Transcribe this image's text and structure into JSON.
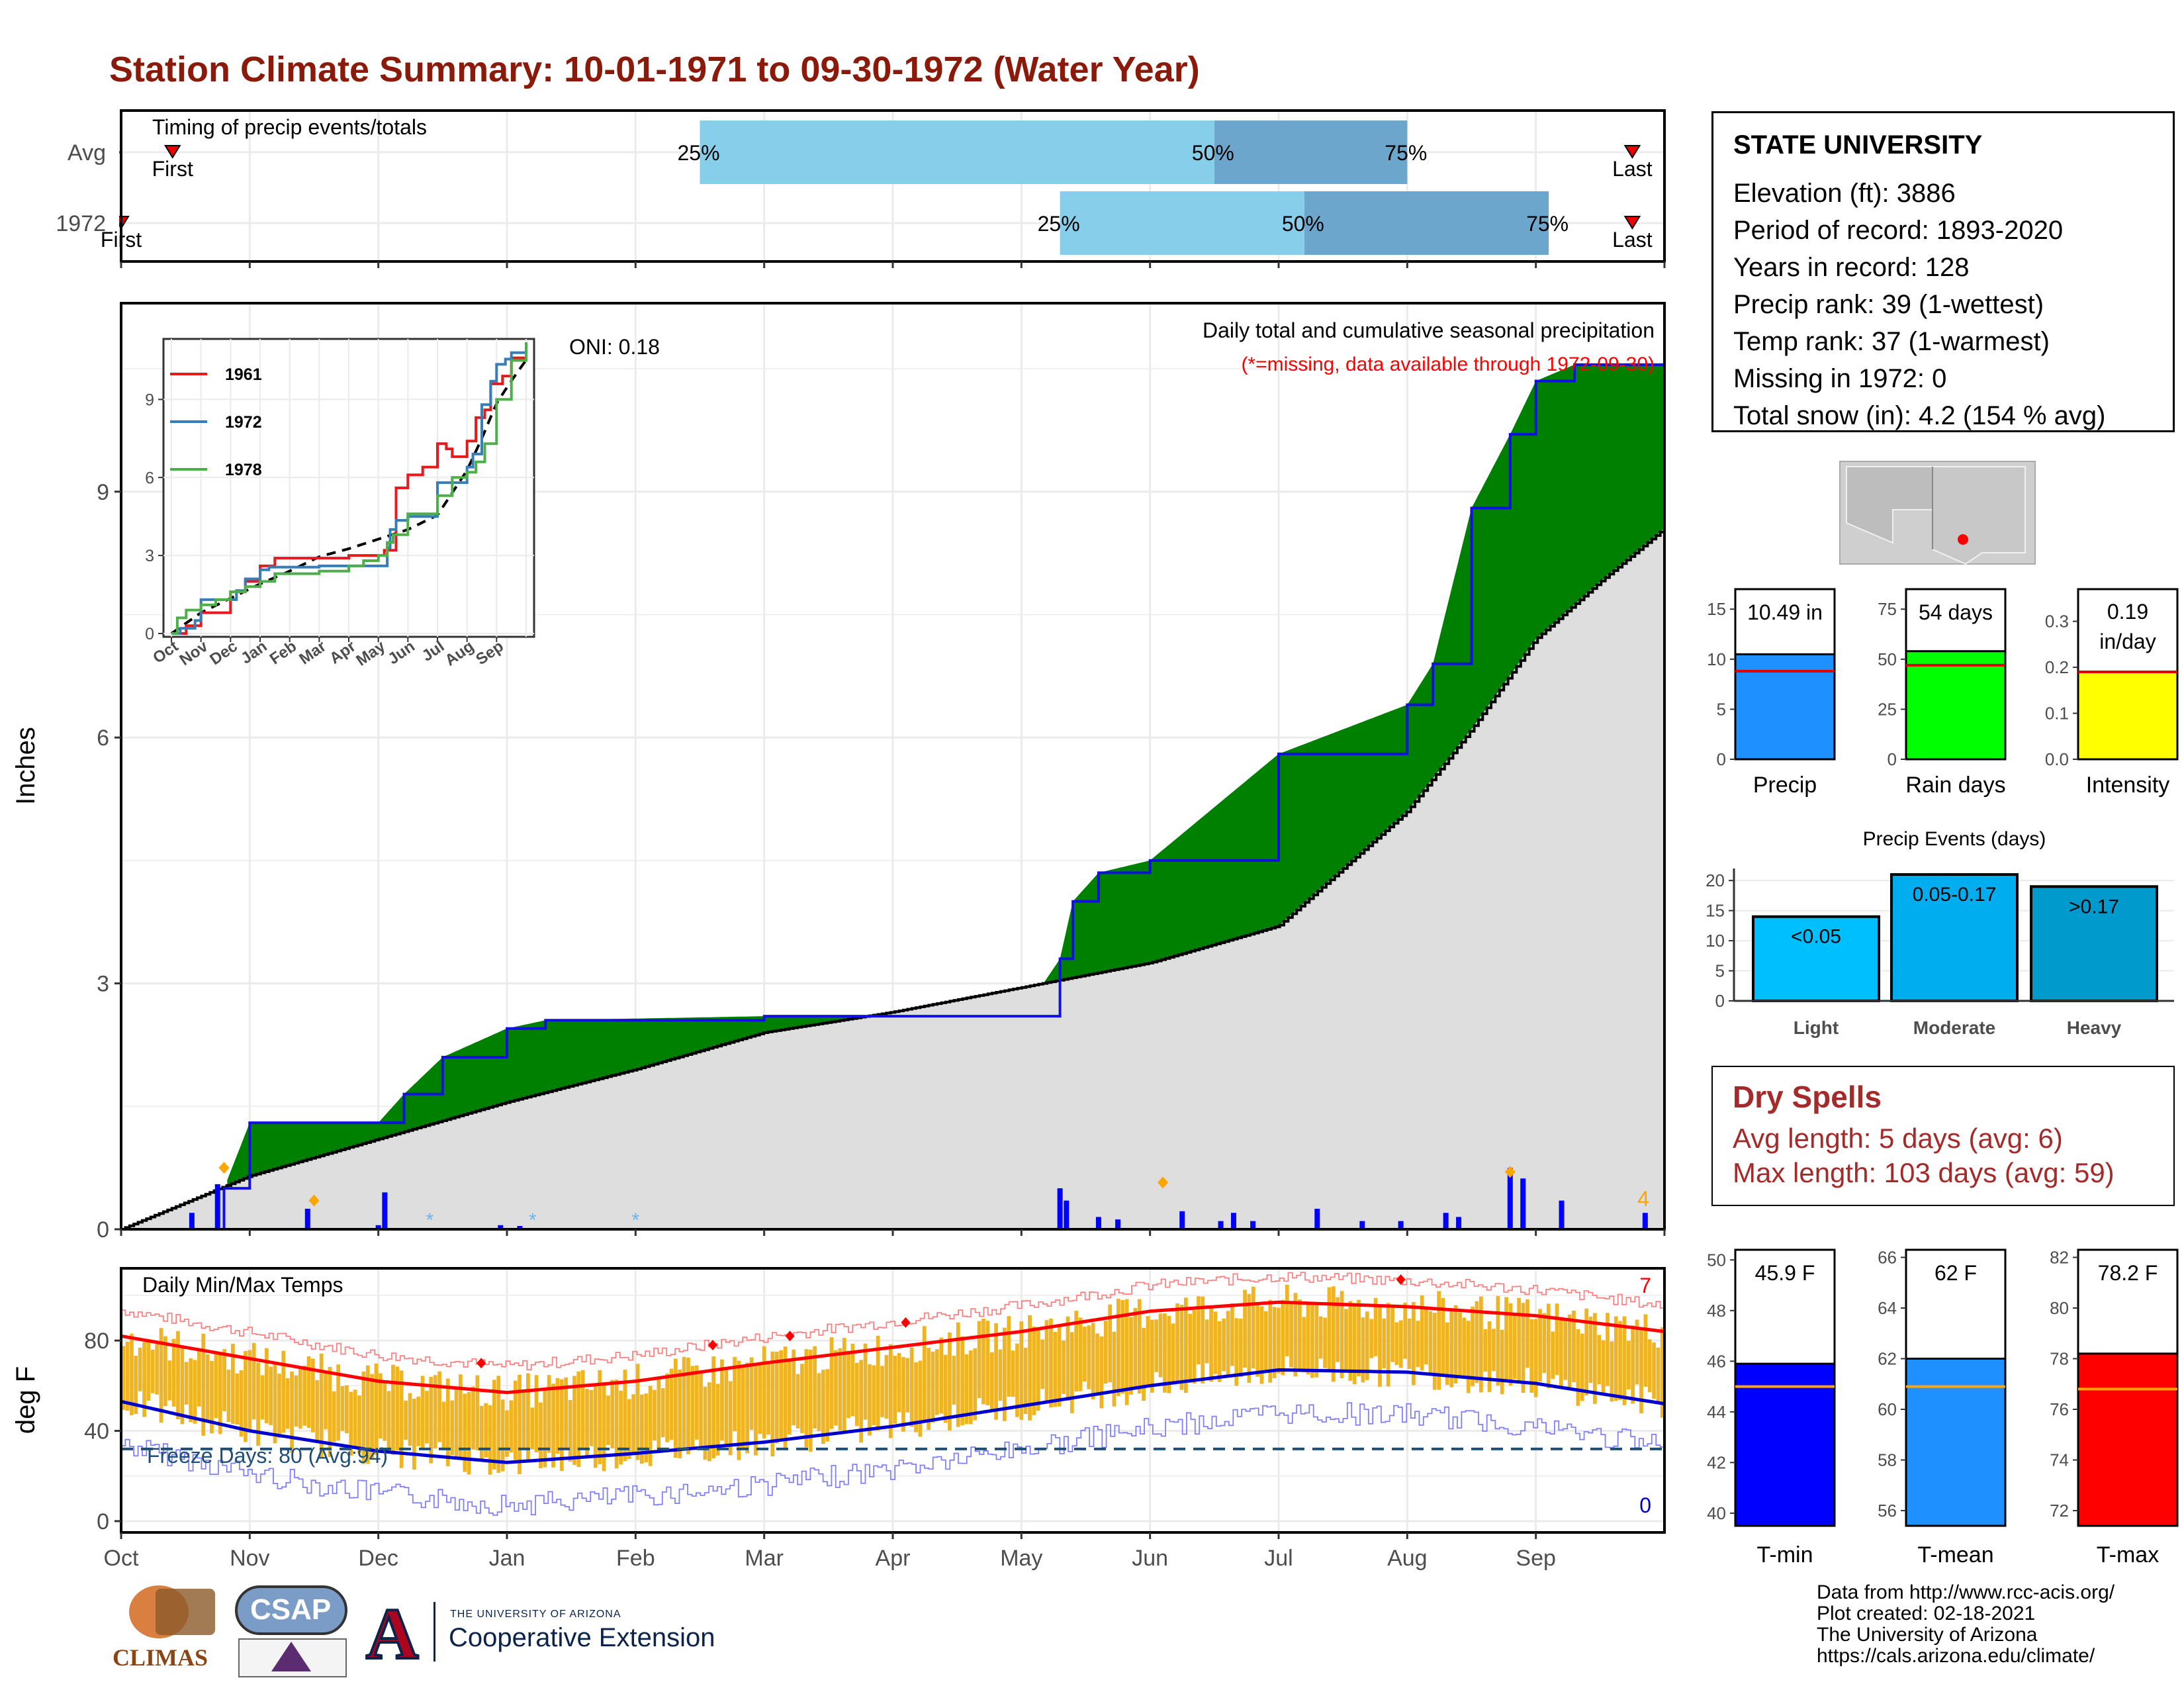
{
  "title": "Station Climate Summary: 10-01-1971 to 09-30-1972 (Water Year)",
  "colors": {
    "title": "#8B1A0A",
    "iqr_light": "#87CEEB",
    "iqr_dark": "#6CA6CD",
    "surplus": "#008000",
    "deficit": "#7F5200",
    "avg_fill": "#DEDEDE",
    "daily_bar": "#0000FF",
    "temp_bar": "#EEB422",
    "tmax_line": "#FF0000",
    "tmin_line": "#0000CD",
    "dry_text": "#A52A2A"
  },
  "timing_panel": {
    "label": "Timing of precip events/totals",
    "rows": [
      {
        "name": "Avg",
        "first_label": "First",
        "last_label": "Last",
        "first_month": 0.4,
        "last_month": 11.75,
        "q25": 4.5,
        "q50": 8.5,
        "q75": 10.0,
        "q25_label": "25%",
        "q50_label": "50%",
        "q75_label": "75%"
      },
      {
        "name": "1972",
        "first_label": "First",
        "last_label": "Last",
        "first_month": 0.0,
        "last_month": 11.75,
        "q25": 7.3,
        "q50": 9.2,
        "q75": 11.1,
        "q25_label": "25%",
        "q50_label": "50%",
        "q75_label": "75%"
      }
    ]
  },
  "precip_panel": {
    "ylabel": "Inches",
    "yticks": [
      "0",
      "3",
      "6",
      "9"
    ],
    "header_line1": "Daily total and cumulative seasonal precipitation",
    "header_line2": "(*=missing, data available through 1972-09-30)",
    "oni": "ONI: 0.18",
    "count_label": "4",
    "xticks": [
      "Oct",
      "Nov",
      "Dec",
      "Jan",
      "Feb",
      "Mar",
      "Apr",
      "May",
      "Jun",
      "Jul",
      "Aug",
      "Sep"
    ]
  },
  "inset": {
    "yticks": [
      "0",
      "3",
      "6",
      "9"
    ],
    "xticks": [
      "Oct",
      "Nov",
      "Dec",
      "Jan",
      "Feb",
      "Mar",
      "Apr",
      "May",
      "Jun",
      "Jul",
      "Aug",
      "Sep"
    ],
    "legend": [
      {
        "name": "1961",
        "color": "#E41A1C"
      },
      {
        "name": "1972",
        "color": "#377EB8"
      },
      {
        "name": "1978",
        "color": "#4DAF4A"
      }
    ]
  },
  "station": {
    "name": "STATE UNIVERSITY",
    "lines": [
      "Elevation (ft): 3886",
      "Period of record: 1893-2020",
      "Years in record: 128",
      "Precip rank: 39 (1-wettest)",
      "Temp rank: 37 (1-warmest)",
      "Missing in 1972: 0",
      "Total snow (in): 4.2 (154 % avg)"
    ]
  },
  "summary_bars": [
    {
      "label": "Precip",
      "value_label": "10.49 in",
      "value": 10.49,
      "avg": 8.8,
      "ymax": 17,
      "ticks": [
        "0",
        "5",
        "10",
        "15"
      ],
      "tick_values": [
        0,
        5,
        10,
        15
      ],
      "color": "#1E90FF"
    },
    {
      "label": "Rain days",
      "value_label": "54 days",
      "value": 54,
      "avg": 47,
      "ymax": 85,
      "ticks": [
        "0",
        "25",
        "50",
        "75"
      ],
      "tick_values": [
        0,
        25,
        50,
        75
      ],
      "color": "#00FF00"
    },
    {
      "label": "Intensity",
      "value_label": "0.19 in/day",
      "value": 0.19,
      "avg": 0.19,
      "ymax": 0.37,
      "ticks": [
        "0.0",
        "0.1",
        "0.2",
        "0.3"
      ],
      "tick_values": [
        0,
        0.1,
        0.2,
        0.3
      ],
      "color": "#FFFF00"
    }
  ],
  "events": {
    "title": "Precip Events (days)",
    "yticks": [
      "0",
      "5",
      "10",
      "15",
      "20"
    ],
    "bars": [
      {
        "category": "Light",
        "range": "<0.05",
        "value": 14,
        "color": "#00BFFF"
      },
      {
        "category": "Moderate",
        "range": "0.05-0.17",
        "value": 21,
        "color": "#00AEEF"
      },
      {
        "category": "Heavy",
        "range": ">0.17",
        "value": 19,
        "color": "#009ACD"
      }
    ]
  },
  "dry_spells": {
    "title": "Dry Spells",
    "avg_line": "Avg length: 5 days (avg: 6)",
    "max_line": "Max length: 103 days (avg: 59)"
  },
  "temp_panel": {
    "ylabel": "deg F",
    "label": "Daily Min/Max Temps",
    "yticks": [
      "0",
      "40",
      "80"
    ],
    "freeze": "Freeze Days: 80 (Avg:94)",
    "max_count": "7",
    "min_count": "0",
    "xticks": [
      "Oct",
      "Nov",
      "Dec",
      "Jan",
      "Feb",
      "Mar",
      "Apr",
      "May",
      "Jun",
      "Jul",
      "Aug",
      "Sep"
    ]
  },
  "temp_bars": [
    {
      "label": "T-min",
      "value_label": "45.9 F",
      "value": 45.9,
      "avg": 45.0,
      "ymin": 39.5,
      "ymax": 50.4,
      "ticks": [
        "40",
        "42",
        "44",
        "46",
        "48",
        "50"
      ],
      "tick_values": [
        40,
        42,
        44,
        46,
        48,
        50
      ],
      "color": "#0000FF"
    },
    {
      "label": "T-mean",
      "value_label": "62 F",
      "value": 62.0,
      "avg": 60.9,
      "ymin": 55.4,
      "ymax": 66.3,
      "ticks": [
        "56",
        "58",
        "60",
        "62",
        "64",
        "66"
      ],
      "tick_values": [
        56,
        58,
        60,
        62,
        64,
        66
      ],
      "color": "#1E90FF"
    },
    {
      "label": "T-max",
      "value_label": "78.2 F",
      "value": 78.2,
      "avg": 76.8,
      "ymin": 71.4,
      "ymax": 82.3,
      "ticks": [
        "72",
        "74",
        "76",
        "78",
        "80",
        "82"
      ],
      "tick_values": [
        72,
        74,
        76,
        78,
        80,
        82
      ],
      "color": "#FF0000"
    }
  ],
  "credits": [
    "Data from http://www.rcc-acis.org/",
    "Plot created: 02-18-2021",
    "The University of Arizona",
    "https://cals.arizona.edu/climate/"
  ],
  "logos": {
    "climas": "CLIMAS",
    "csap": "CSAP",
    "ua_small": "THE UNIVERSITY OF ARIZONA",
    "ua_big": "Cooperative Extension",
    "ua_letter": "A"
  },
  "chart_data": [
    {
      "type": "area",
      "title": "Daily total and cumulative seasonal precipitation",
      "ylabel": "Inches",
      "ylim": [
        0,
        11.3
      ],
      "x_unit": "month index from Oct 1",
      "series": [
        {
          "name": "1972",
          "x": [
            0,
            0.8,
            1.0,
            2.0,
            2.2,
            2.5,
            3.0,
            3.3,
            5.0,
            7.0,
            7.3,
            7.4,
            7.6,
            8.0,
            9.0,
            10.0,
            10.2,
            10.5,
            10.8,
            11.0,
            11.3,
            11.5,
            12.0
          ],
          "y": [
            0,
            0.5,
            1.3,
            1.3,
            1.65,
            2.1,
            2.45,
            2.55,
            2.6,
            2.6,
            3.3,
            4.0,
            4.35,
            4.5,
            5.8,
            6.4,
            6.9,
            8.8,
            9.7,
            10.35,
            10.55,
            10.55,
            10.55
          ]
        },
        {
          "name": "Avg",
          "x": [
            0,
            1,
            2,
            3,
            4,
            5,
            6,
            7,
            8,
            9,
            10,
            10.5,
            11,
            11.5,
            12
          ],
          "y": [
            0,
            0.65,
            1.1,
            1.55,
            1.95,
            2.4,
            2.65,
            2.95,
            3.25,
            3.7,
            5.1,
            6.1,
            7.2,
            7.9,
            8.55
          ]
        }
      ],
      "daily_values": [
        {
          "x": 0.55,
          "y": 0.2
        },
        {
          "x": 0.75,
          "y": 0.55
        },
        {
          "x": 1.45,
          "y": 0.25
        },
        {
          "x": 2.0,
          "y": 0.05
        },
        {
          "x": 2.05,
          "y": 0.45
        },
        {
          "x": 2.95,
          "y": 0.05
        },
        {
          "x": 3.1,
          "y": 0.04
        },
        {
          "x": 7.3,
          "y": 0.5
        },
        {
          "x": 7.35,
          "y": 0.35
        },
        {
          "x": 7.6,
          "y": 0.15
        },
        {
          "x": 7.75,
          "y": 0.12
        },
        {
          "x": 8.25,
          "y": 0.22
        },
        {
          "x": 8.55,
          "y": 0.1
        },
        {
          "x": 8.65,
          "y": 0.2
        },
        {
          "x": 8.8,
          "y": 0.1
        },
        {
          "x": 9.3,
          "y": 0.25
        },
        {
          "x": 9.65,
          "y": 0.1
        },
        {
          "x": 9.95,
          "y": 0.1
        },
        {
          "x": 10.3,
          "y": 0.2
        },
        {
          "x": 10.4,
          "y": 0.15
        },
        {
          "x": 10.8,
          "y": 0.75
        },
        {
          "x": 10.9,
          "y": 0.62
        },
        {
          "x": 11.2,
          "y": 0.35
        },
        {
          "x": 11.85,
          "y": 0.2
        }
      ]
    },
    {
      "type": "line",
      "title": "Daily Min/Max Temps",
      "ylabel": "deg F",
      "ylim": [
        -5,
        112
      ],
      "series": [
        {
          "name": "Avg max",
          "x": [
            0,
            1,
            2,
            3,
            4,
            5,
            6,
            7,
            8,
            9,
            10,
            11,
            12
          ],
          "y": [
            82,
            72,
            62,
            57,
            62,
            70,
            77,
            84,
            93,
            97,
            95,
            91,
            84
          ]
        },
        {
          "name": "Avg min",
          "x": [
            0,
            1,
            2,
            3,
            4,
            5,
            6,
            7,
            8,
            9,
            10,
            11,
            12
          ],
          "y": [
            53,
            40,
            31,
            26,
            30,
            35,
            42,
            51,
            60,
            67,
            66,
            61,
            52
          ]
        }
      ]
    }
  ]
}
